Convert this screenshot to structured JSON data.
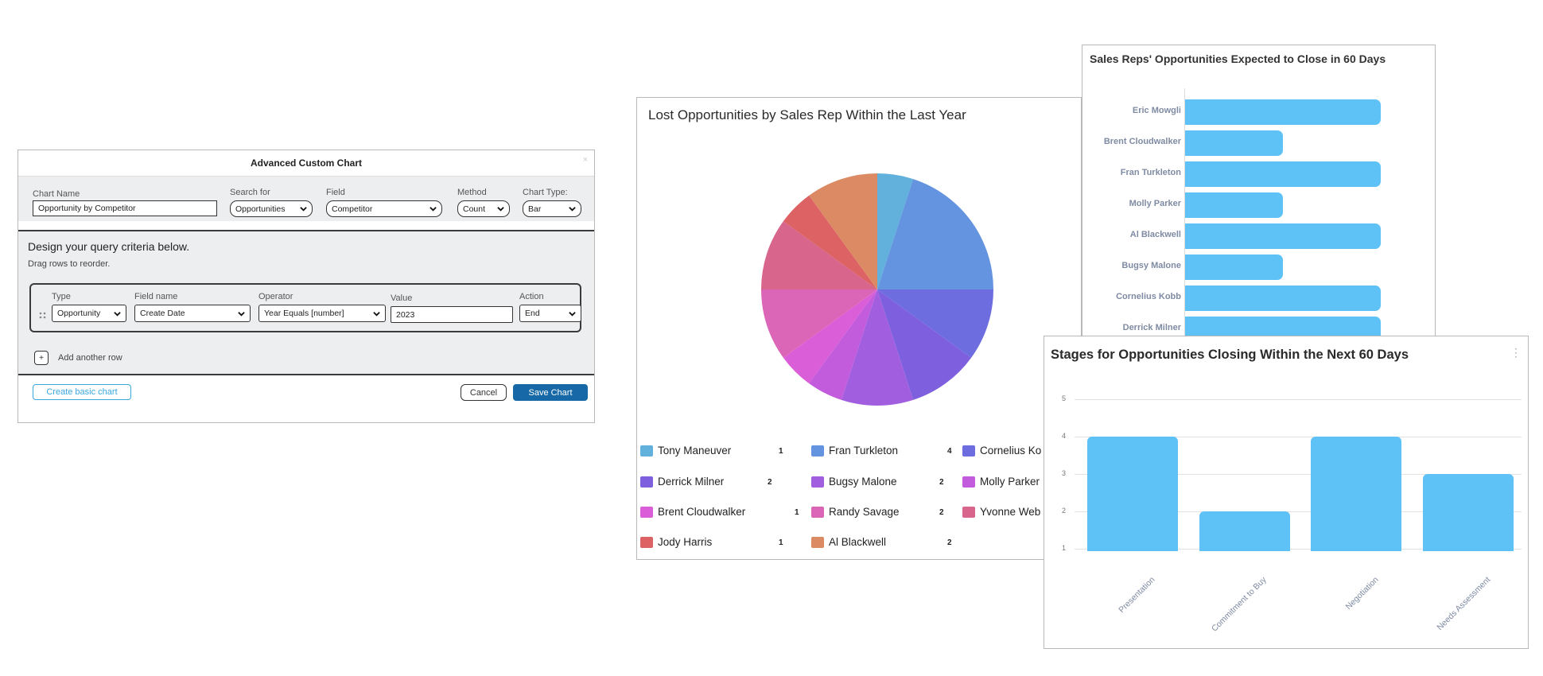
{
  "dialog": {
    "title": "Advanced Custom Chart",
    "chart_name_label": "Chart Name",
    "chart_name_value": "Opportunity by Competitor",
    "search_for_label": "Search for",
    "search_for_value": "Opportunities",
    "field_label": "Field",
    "field_value": "Competitor",
    "method_label": "Method",
    "method_value": "Count",
    "chart_type_label": "Chart Type:",
    "chart_type_value": "Bar",
    "design_heading": "Design your query criteria below.",
    "drag_hint": "Drag rows to reorder.",
    "row": {
      "type_label": "Type",
      "type_value": "Opportunity",
      "field_name_label": "Field name",
      "field_name_value": "Create Date",
      "operator_label": "Operator",
      "operator_value": "Year Equals [number]",
      "value_label": "Value",
      "value_value": "2023",
      "action_label": "Action",
      "action_value": "End"
    },
    "add_row_label": "Add another row",
    "create_basic_label": "Create basic chart",
    "cancel_label": "Cancel",
    "save_label": "Save Chart"
  },
  "lost_chart": {
    "chart_data": {
      "type": "pie",
      "title": "Lost Opportunities by Sales Rep Within the Last Year",
      "slices": [
        {
          "name": "Tony Maneuver",
          "value": 1,
          "color": "#62b1dd"
        },
        {
          "name": "Fran Turkleton",
          "value": 4,
          "color": "#6493df"
        },
        {
          "name": "Cornelius Kobb",
          "value": 2,
          "color": "#6d6ddf"
        },
        {
          "name": "Derrick Milner",
          "value": 2,
          "color": "#7e60de"
        },
        {
          "name": "Bugsy Malone",
          "value": 2,
          "color": "#a15fdf"
        },
        {
          "name": "Molly Parker",
          "value": 1,
          "color": "#c35bdd"
        },
        {
          "name": "Brent Cloudwalker",
          "value": 1,
          "color": "#d95ed8"
        },
        {
          "name": "Randy Savage",
          "value": 2,
          "color": "#db66b8"
        },
        {
          "name": "Yvonne Webb",
          "value": 2,
          "color": "#d8668c"
        },
        {
          "name": "Jody Harris",
          "value": 1,
          "color": "#dc6264"
        },
        {
          "name": "Al Blackwell",
          "value": 2,
          "color": "#dc8a64"
        }
      ]
    },
    "legend": [
      {
        "label": "Tony Maneuver",
        "value": "1",
        "color": "#62b1dd"
      },
      {
        "label": "Fran Turkleton",
        "value": "4",
        "color": "#6493df"
      },
      {
        "label": "Cornelius Ko",
        "value": "",
        "color": "#6d6ddf"
      },
      {
        "label": "Derrick Milner",
        "value": "2",
        "color": "#7e60de"
      },
      {
        "label": "Bugsy Malone",
        "value": "2",
        "color": "#a15fdf"
      },
      {
        "label": "Molly Parker",
        "value": "",
        "color": "#c35bdd"
      },
      {
        "label": "Brent Cloudwalker",
        "value": "1",
        "color": "#d95ed8"
      },
      {
        "label": "Randy Savage",
        "value": "2",
        "color": "#db66b8"
      },
      {
        "label": "Yvonne Web",
        "value": "",
        "color": "#d8668c"
      },
      {
        "label": "Jody Harris",
        "value": "1",
        "color": "#dc6264"
      },
      {
        "label": "Al Blackwell",
        "value": "2",
        "color": "#dc8a64"
      }
    ]
  },
  "reps_chart": {
    "chart_data": {
      "type": "bar",
      "orientation": "horizontal",
      "title": "Sales Reps' Opportunities Expected to Close in 60 Days",
      "categories": [
        "Eric Mowgli",
        "Brent Cloudwalker",
        "Fran Turkleton",
        "Molly Parker",
        "Al Blackwell",
        "Bugsy Malone",
        "Cornelius Kobb",
        "Derrick Milner"
      ],
      "values": [
        2,
        1,
        2,
        1,
        2,
        1,
        2,
        2
      ],
      "color": "#5ec2f7"
    }
  },
  "stages_chart": {
    "chart_data": {
      "type": "bar",
      "title": "Stages for Opportunities Closing Within the Next 60 Days",
      "categories": [
        "Presentation",
        "Commitment to Buy",
        "Negotiation",
        "Needs Assessment"
      ],
      "values": [
        4,
        2,
        4,
        3
      ],
      "yticks": [
        "1",
        "2",
        "3",
        "4",
        "5"
      ],
      "ylim": [
        1,
        5
      ],
      "grid": true,
      "color": "#5ec2f7"
    },
    "menu_icon": "kebab-menu-icon"
  }
}
